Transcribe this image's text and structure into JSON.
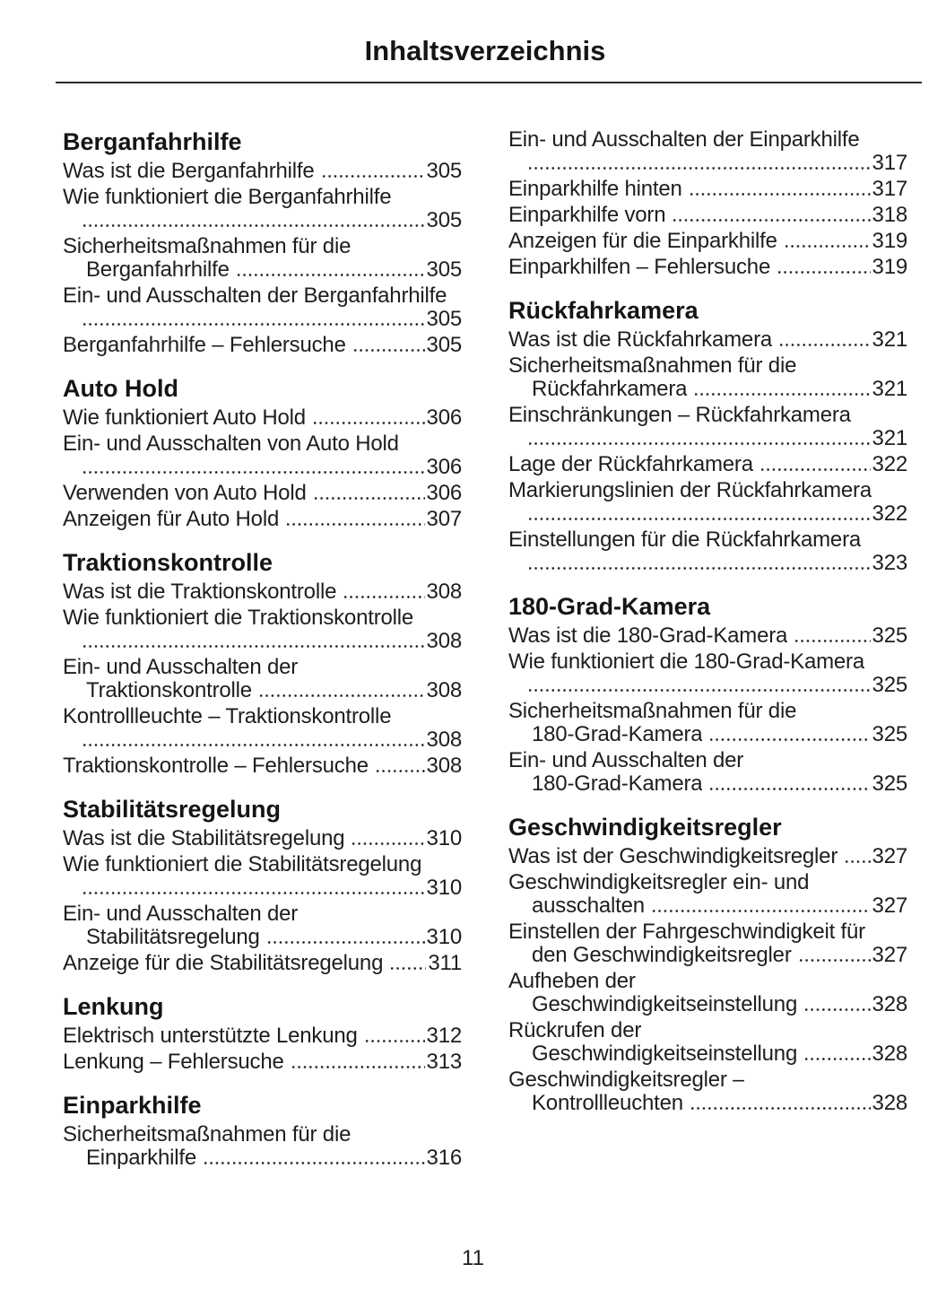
{
  "page": {
    "title": "Inhaltsverzeichnis",
    "page_number": "11"
  },
  "columns": [
    {
      "sections": [
        {
          "heading": "Berganfahrhilfe",
          "entries": [
            {
              "lines": [
                {
                  "text": "Was ist die Berganfahrhilfe",
                  "page": "305"
                }
              ]
            },
            {
              "lines": [
                {
                  "text": "Wie funktioniert die Berganfahrhilfe"
                },
                {
                  "page": "305"
                }
              ]
            },
            {
              "lines": [
                {
                  "text": "Sicherheitsmaßnahmen für die"
                },
                {
                  "text": "Berganfahrhilfe",
                  "page": "305"
                }
              ]
            },
            {
              "lines": [
                {
                  "text": "Ein- und Ausschalten der Berganfahrhilfe"
                },
                {
                  "page": "305"
                }
              ]
            },
            {
              "lines": [
                {
                  "text": "Berganfahrhilfe – Fehlersuche",
                  "page": "305"
                }
              ]
            }
          ]
        },
        {
          "heading": "Auto Hold",
          "entries": [
            {
              "lines": [
                {
                  "text": "Wie funktioniert Auto Hold",
                  "page": "306"
                }
              ]
            },
            {
              "lines": [
                {
                  "text": "Ein- und Ausschalten von Auto Hold"
                },
                {
                  "page": "306"
                }
              ]
            },
            {
              "lines": [
                {
                  "text": "Verwenden von Auto Hold",
                  "page": "306"
                }
              ]
            },
            {
              "lines": [
                {
                  "text": "Anzeigen für Auto Hold",
                  "page": "307"
                }
              ]
            }
          ]
        },
        {
          "heading": "Traktionskontrolle",
          "entries": [
            {
              "lines": [
                {
                  "text": "Was ist die Traktionskontrolle",
                  "page": "308"
                }
              ]
            },
            {
              "lines": [
                {
                  "text": "Wie funktioniert die Traktionskontrolle"
                },
                {
                  "page": "308"
                }
              ]
            },
            {
              "lines": [
                {
                  "text": "Ein- und Ausschalten der"
                },
                {
                  "text": "Traktionskontrolle",
                  "page": "308"
                }
              ]
            },
            {
              "lines": [
                {
                  "text": "Kontrollleuchte – Traktionskontrolle"
                },
                {
                  "page": "308"
                }
              ]
            },
            {
              "lines": [
                {
                  "text": "Traktionskontrolle – Fehlersuche",
                  "page": "308"
                }
              ]
            }
          ]
        },
        {
          "heading": "Stabilitätsregelung",
          "entries": [
            {
              "lines": [
                {
                  "text": "Was ist die Stabilitätsregelung",
                  "page": "310"
                }
              ]
            },
            {
              "lines": [
                {
                  "text": "Wie funktioniert die Stabilitätsregelung"
                },
                {
                  "page": "310"
                }
              ]
            },
            {
              "lines": [
                {
                  "text": "Ein- und Ausschalten der"
                },
                {
                  "text": "Stabilitätsregelung",
                  "page": "310"
                }
              ]
            },
            {
              "lines": [
                {
                  "text": "Anzeige für die Stabilitätsregelung",
                  "page": "311"
                }
              ]
            }
          ]
        },
        {
          "heading": "Lenkung",
          "entries": [
            {
              "lines": [
                {
                  "text": "Elektrisch unterstützte Lenkung",
                  "page": "312"
                }
              ]
            },
            {
              "lines": [
                {
                  "text": "Lenkung – Fehlersuche",
                  "page": "313"
                }
              ]
            }
          ]
        },
        {
          "heading": "Einparkhilfe",
          "entries": [
            {
              "lines": [
                {
                  "text": "Sicherheitsmaßnahmen für die"
                },
                {
                  "text": "Einparkhilfe",
                  "page": "316"
                }
              ]
            }
          ]
        }
      ]
    },
    {
      "sections": [
        {
          "heading": "",
          "entries": [
            {
              "lines": [
                {
                  "text": "Ein- und Ausschalten der Einparkhilfe"
                },
                {
                  "page": "317"
                }
              ]
            },
            {
              "lines": [
                {
                  "text": "Einparkhilfe hinten",
                  "page": "317"
                }
              ]
            },
            {
              "lines": [
                {
                  "text": "Einparkhilfe vorn",
                  "page": "318"
                }
              ]
            },
            {
              "lines": [
                {
                  "text": "Anzeigen für die Einparkhilfe",
                  "page": "319"
                }
              ]
            },
            {
              "lines": [
                {
                  "text": "Einparkhilfen – Fehlersuche",
                  "page": "319"
                }
              ]
            }
          ]
        },
        {
          "heading": "Rückfahrkamera",
          "entries": [
            {
              "lines": [
                {
                  "text": "Was ist die Rückfahrkamera",
                  "page": "321"
                }
              ]
            },
            {
              "lines": [
                {
                  "text": "Sicherheitsmaßnahmen für die"
                },
                {
                  "text": "Rückfahrkamera",
                  "page": "321"
                }
              ]
            },
            {
              "lines": [
                {
                  "text": "Einschränkungen – Rückfahrkamera"
                },
                {
                  "page": "321"
                }
              ]
            },
            {
              "lines": [
                {
                  "text": "Lage der Rückfahrkamera",
                  "page": "322"
                }
              ]
            },
            {
              "lines": [
                {
                  "text": "Markierungslinien der Rückfahrkamera"
                },
                {
                  "page": "322"
                }
              ]
            },
            {
              "lines": [
                {
                  "text": "Einstellungen für die Rückfahrkamera"
                },
                {
                  "page": "323"
                }
              ]
            }
          ]
        },
        {
          "heading": "180-Grad-Kamera",
          "entries": [
            {
              "lines": [
                {
                  "text": "Was ist die 180-Grad-Kamera",
                  "page": "325"
                }
              ]
            },
            {
              "lines": [
                {
                  "text": "Wie funktioniert die 180-Grad-Kamera"
                },
                {
                  "page": "325"
                }
              ]
            },
            {
              "lines": [
                {
                  "text": "Sicherheitsmaßnahmen für die"
                },
                {
                  "text": "180-Grad-Kamera",
                  "page": "325"
                }
              ]
            },
            {
              "lines": [
                {
                  "text": "Ein- und Ausschalten der"
                },
                {
                  "text": "180-Grad-Kamera",
                  "page": "325"
                }
              ]
            }
          ]
        },
        {
          "heading": "Geschwindigkeitsregler",
          "entries": [
            {
              "lines": [
                {
                  "text": "Was ist der Geschwindigkeitsregler",
                  "page": "327"
                }
              ]
            },
            {
              "lines": [
                {
                  "text": "Geschwindigkeitsregler ein- und"
                },
                {
                  "text": "ausschalten",
                  "page": "327"
                }
              ]
            },
            {
              "lines": [
                {
                  "text": "Einstellen der Fahrgeschwindigkeit für"
                },
                {
                  "text": "den Geschwindigkeitsregler",
                  "page": "327"
                }
              ]
            },
            {
              "lines": [
                {
                  "text": "Aufheben der"
                },
                {
                  "text": "Geschwindigkeitseinstellung",
                  "page": "328"
                }
              ]
            },
            {
              "lines": [
                {
                  "text": "Rückrufen der"
                },
                {
                  "text": "Geschwindigkeitseinstellung",
                  "page": "328"
                }
              ]
            },
            {
              "lines": [
                {
                  "text": "Geschwindigkeitsregler –"
                },
                {
                  "text": "Kontrollleuchten",
                  "page": "328"
                }
              ]
            }
          ]
        }
      ]
    }
  ]
}
